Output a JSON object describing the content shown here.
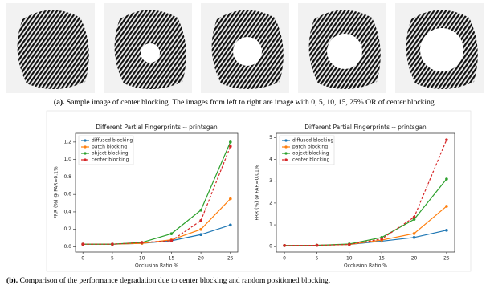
{
  "captions": {
    "a": {
      "label": "(a).",
      "text": "Sample image of center blocking. The images from left to right are image with 0, 5, 10, 15, 25% OR of center blocking."
    },
    "b": {
      "label": "(b).",
      "text": "Comparison of the performance degradation due to center blocking and random positioned blocking."
    }
  },
  "chart_data": [
    {
      "type": "line",
      "title": "Different Partial Fingerprints -- printsgan",
      "x_label": "Occlusion Ratio %",
      "y_label": "FRR (%) @ FAR=0.1%",
      "x": [
        0,
        5,
        10,
        15,
        20,
        25
      ],
      "xlim": [
        -1.25,
        26.25
      ],
      "xticks": [
        0,
        5,
        10,
        15,
        20,
        25
      ],
      "ylim": [
        -0.06,
        1.3
      ],
      "yticks": [
        {
          "value": 0,
          "label": "0.0"
        },
        0.2,
        0.4,
        0.6,
        0.8,
        {
          "value": 1,
          "label": "1.0"
        },
        1.2
      ],
      "legend": "upper left",
      "series": [
        {
          "name": "diffused blocking",
          "color": "#1f77b4",
          "linestyle": "solid",
          "values": [
            0.03,
            0.03,
            0.04,
            0.07,
            0.14,
            0.25
          ]
        },
        {
          "name": "patch blocking",
          "color": "#ff7f0e",
          "linestyle": "solid",
          "values": [
            0.03,
            0.03,
            0.04,
            0.08,
            0.2,
            0.55
          ]
        },
        {
          "name": "object blocking",
          "color": "#2ca02c",
          "linestyle": "solid",
          "values": [
            0.03,
            0.03,
            0.05,
            0.15,
            0.42,
            1.2
          ]
        },
        {
          "name": "center blocking",
          "color": "#d62728",
          "linestyle": "dashed",
          "values": [
            0.03,
            0.03,
            0.05,
            0.07,
            0.3,
            1.15
          ]
        }
      ]
    },
    {
      "type": "line",
      "title": "Different Partial Fingerprints -- printsgan",
      "x_label": "Occlusion Ratio %",
      "y_label": "FRR (%) @ FAR=0.01%",
      "x": [
        0,
        5,
        10,
        15,
        20,
        25
      ],
      "xlim": [
        -1.25,
        26.25
      ],
      "xticks": [
        0,
        5,
        10,
        15,
        20,
        25
      ],
      "ylim": [
        -0.25,
        5.2
      ],
      "yticks": [
        0,
        1,
        2,
        3,
        4,
        5
      ],
      "legend": "upper left",
      "series": [
        {
          "name": "diffused blocking",
          "color": "#1f77b4",
          "linestyle": "solid",
          "values": [
            0.05,
            0.06,
            0.1,
            0.25,
            0.42,
            0.75
          ]
        },
        {
          "name": "patch blocking",
          "color": "#ff7f0e",
          "linestyle": "solid",
          "values": [
            0.05,
            0.06,
            0.1,
            0.3,
            0.6,
            1.85
          ]
        },
        {
          "name": "object blocking",
          "color": "#2ca02c",
          "linestyle": "solid",
          "values": [
            0.05,
            0.06,
            0.12,
            0.42,
            1.25,
            3.1
          ]
        },
        {
          "name": "center blocking",
          "color": "#d62728",
          "linestyle": "dashed",
          "values": [
            0.05,
            0.06,
            0.1,
            0.35,
            1.35,
            4.9
          ]
        }
      ]
    }
  ]
}
